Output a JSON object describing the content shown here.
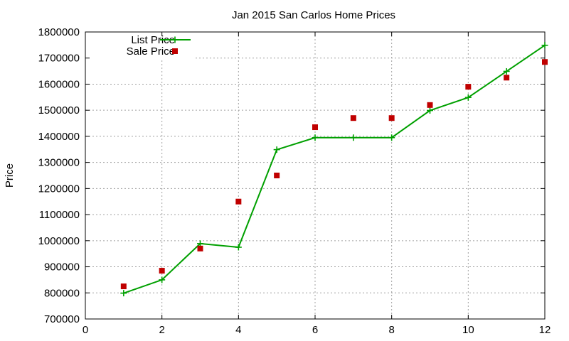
{
  "chart_data": {
    "type": "line",
    "title": "Jan 2015 San Carlos Home Prices",
    "xlabel": "",
    "ylabel": "Price",
    "xlim": [
      0,
      12
    ],
    "ylim": [
      700000,
      1800000
    ],
    "x_ticks": [
      0,
      2,
      4,
      6,
      8,
      10,
      12
    ],
    "y_ticks": [
      700000,
      800000,
      900000,
      1000000,
      1100000,
      1200000,
      1300000,
      1400000,
      1500000,
      1600000,
      1700000,
      1800000
    ],
    "grid": true,
    "legend_position": "top-left",
    "series": [
      {
        "name": "List Price",
        "style": "line+cross",
        "color": "#00a000",
        "x": [
          1,
          2,
          3,
          4,
          5,
          6,
          7,
          8,
          9,
          10,
          11,
          12
        ],
        "values": [
          799000,
          850000,
          989000,
          975000,
          1349000,
          1395000,
          1395000,
          1395000,
          1499000,
          1549000,
          1649000,
          1749000
        ]
      },
      {
        "name": "Sale Price",
        "style": "square-points",
        "color": "#c00000",
        "x": [
          1,
          2,
          3,
          4,
          5,
          6,
          7,
          8,
          9,
          10,
          11,
          12
        ],
        "values": [
          825000,
          885000,
          970000,
          1150000,
          1250000,
          1435000,
          1470000,
          1470000,
          1520000,
          1590000,
          1625000,
          1685000
        ]
      }
    ]
  }
}
